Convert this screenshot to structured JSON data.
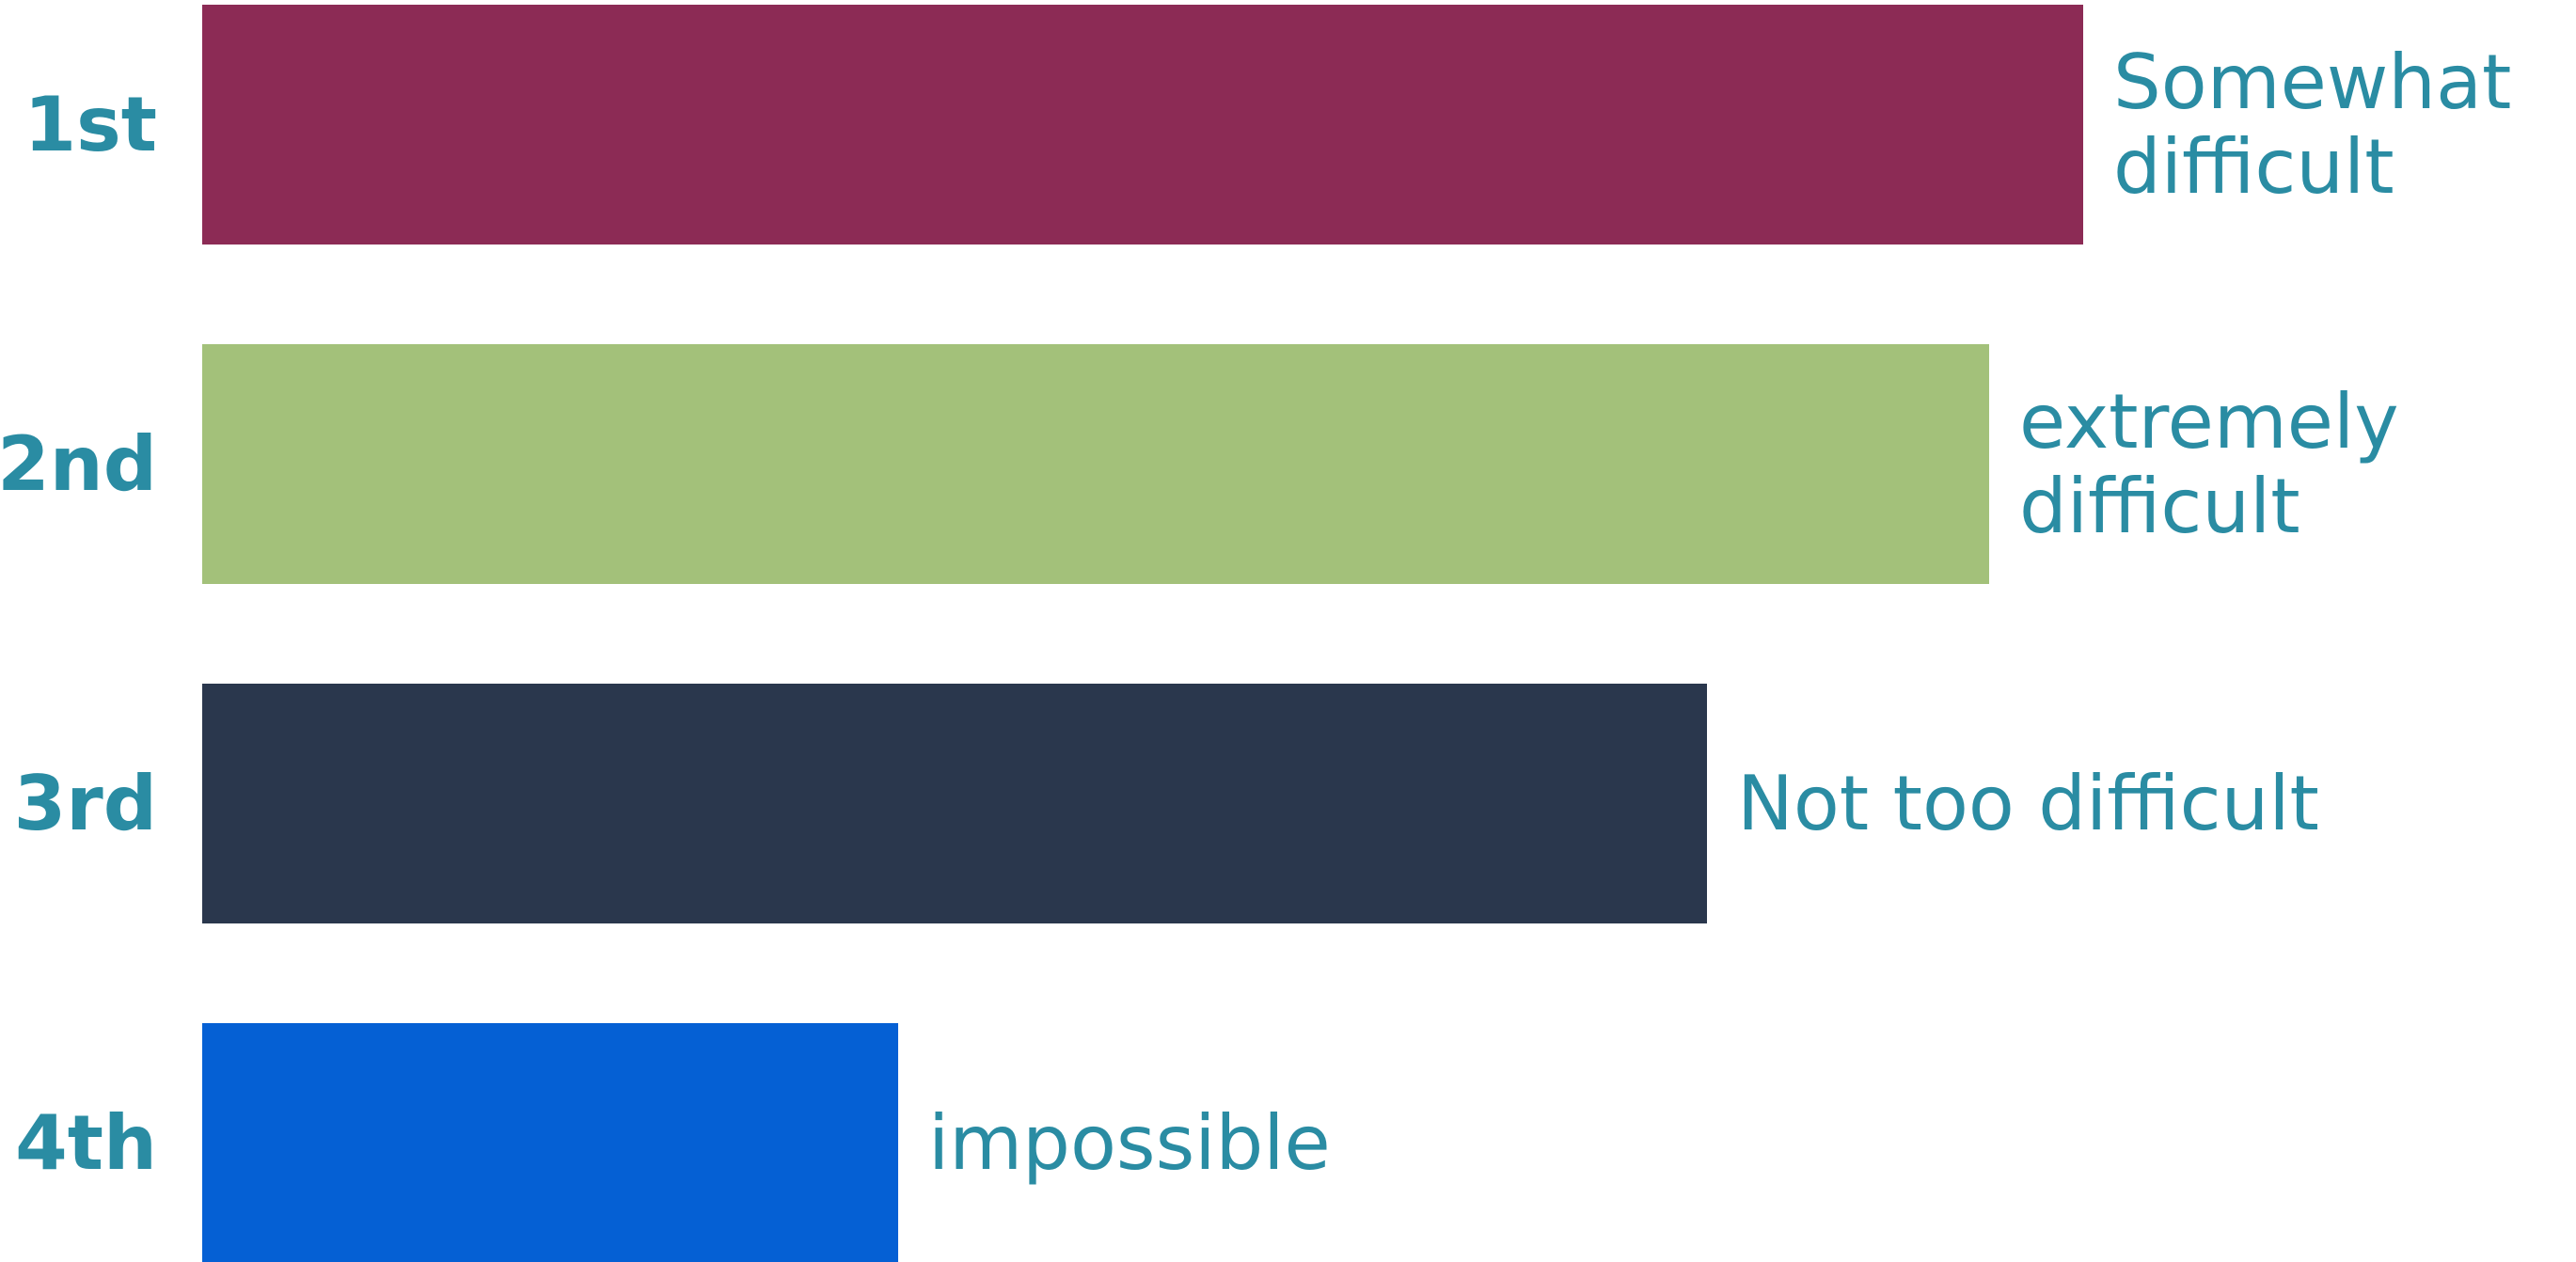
{
  "chart_data": {
    "type": "bar",
    "orientation": "horizontal",
    "categories": [
      "1st",
      "2nd",
      "3rd",
      "4th"
    ],
    "values": [
      100,
      95,
      80,
      37
    ],
    "labels": [
      [
        "Somewhat",
        "difficult"
      ],
      [
        "extremely",
        "difficult"
      ],
      [
        "Not too difficult"
      ],
      [
        "impossible"
      ]
    ],
    "colors": [
      "#8c2b55",
      "#a3c17a",
      "#2a374d",
      "#0560d4"
    ],
    "label_color": "#2a8ca3",
    "xlim": [
      0,
      100
    ],
    "grid": false,
    "axes_visible": false
  }
}
